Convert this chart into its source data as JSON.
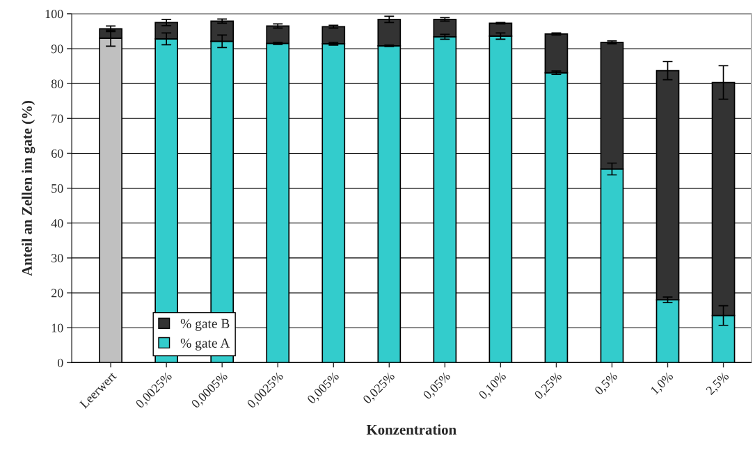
{
  "chart_data": {
    "type": "bar",
    "stacked": true,
    "ylabel": "Anteil an Zellen im gate (%)",
    "xlabel": "Konzentration",
    "categories": [
      "Leerwert",
      "0,0025%",
      "0,0005%",
      "0,0025%",
      "0,005%",
      "0,025%",
      "0,05%",
      "0,10%",
      "0,25%",
      "0,5%",
      "1,0%",
      "2,5%"
    ],
    "series": [
      {
        "name": "% gate A",
        "color": "#33cccc",
        "colors": [
          "#c0c0c0",
          "#33cccc",
          "#33cccc",
          "#33cccc",
          "#33cccc",
          "#33cccc",
          "#33cccc",
          "#33cccc",
          "#33cccc",
          "#33cccc",
          "#33cccc",
          "#33cccc"
        ],
        "values": [
          93.0,
          92.8,
          92.1,
          91.5,
          91.4,
          90.8,
          93.4,
          93.6,
          83.1,
          55.5,
          18.0,
          13.5
        ],
        "errors": [
          2.3,
          1.7,
          1.8,
          0.3,
          0.4,
          0.2,
          0.7,
          0.9,
          0.5,
          1.7,
          0.8,
          2.8
        ]
      },
      {
        "name": "% gate B",
        "color": "#333333",
        "values": [
          2.7,
          4.7,
          5.8,
          5.0,
          4.9,
          7.6,
          5.0,
          3.7,
          11.1,
          36.3,
          65.7,
          66.8
        ],
        "errors": [
          0.8,
          0.9,
          0.6,
          0.6,
          0.4,
          0.9,
          0.5,
          0.2,
          0.3,
          0.4,
          2.6,
          4.8
        ]
      }
    ],
    "ylim": [
      0,
      100
    ],
    "yticks": [
      0,
      10,
      20,
      30,
      40,
      50,
      60,
      70,
      80,
      90,
      100
    ],
    "grid": "y",
    "legend": "bottom left"
  }
}
